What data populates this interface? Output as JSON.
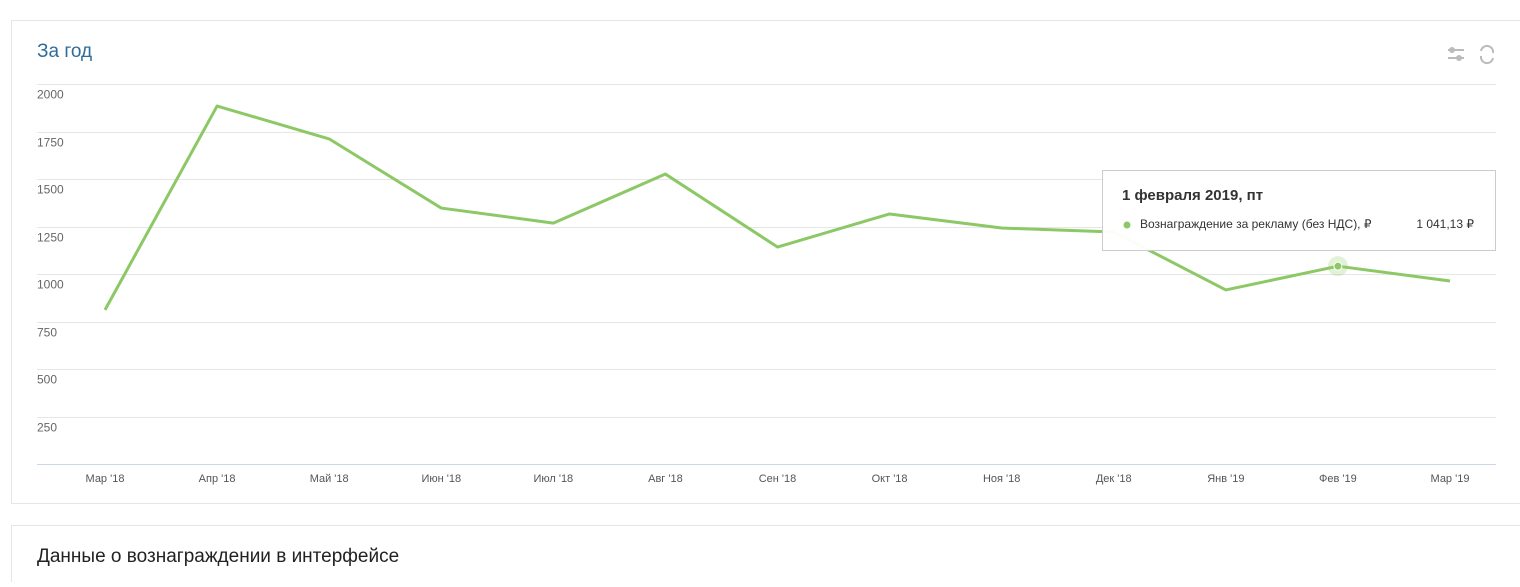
{
  "header": {
    "title": "За год"
  },
  "chart_data": {
    "type": "line",
    "categories": [
      "Мар '18",
      "Апр '18",
      "Май '18",
      "Июн '18",
      "Июл '18",
      "Авг '18",
      "Сен '18",
      "Окт '18",
      "Ноя '18",
      "Дек '18",
      "Янв '19",
      "Фев '19",
      "Мар '19"
    ],
    "series": [
      {
        "name": "Вознаграждение за рекламу (без НДС), ₽",
        "color": "#8cc865",
        "values": [
          811,
          1884,
          1711,
          1347,
          1268,
          1526,
          1142,
          1316,
          1242,
          1221,
          916,
          1041.13,
          963
        ],
        "value_labels": [
          null,
          null,
          null,
          null,
          null,
          null,
          null,
          null,
          null,
          null,
          null,
          "1 041,13 ₽",
          null
        ]
      }
    ],
    "ylim": [
      0,
      2000
    ],
    "yticks": [
      250,
      500,
      750,
      1000,
      1250,
      1500,
      1750,
      2000
    ],
    "grid": true,
    "tooltip_title": "1 февраля 2019, пт"
  },
  "section": {
    "title": "Данные о вознаграждении в интерфейсе"
  }
}
